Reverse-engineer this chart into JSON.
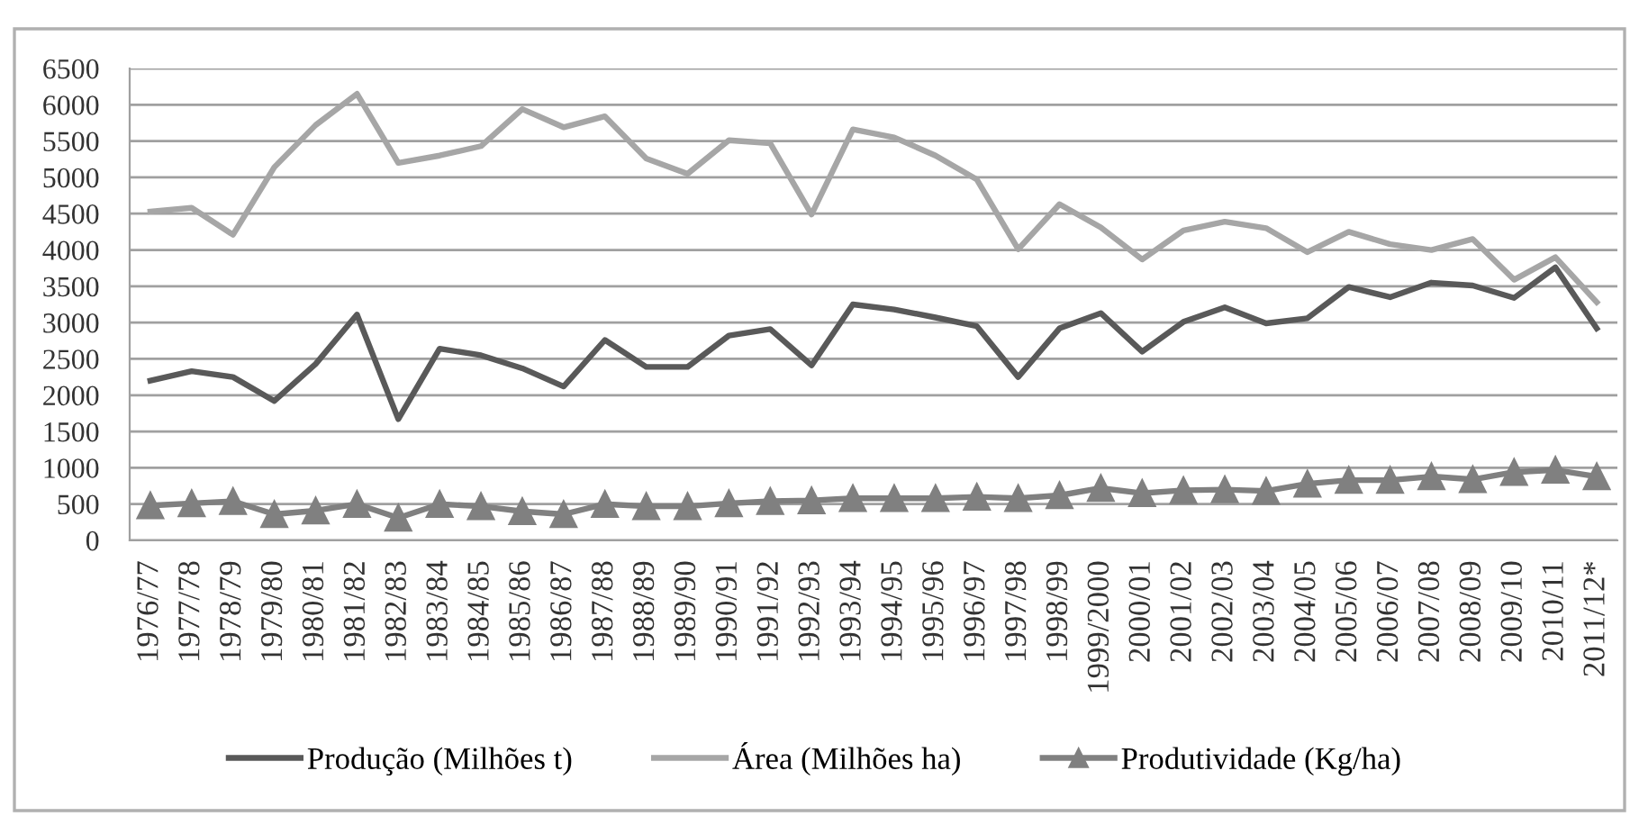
{
  "chart_data": {
    "type": "line",
    "categories": [
      "1976/77",
      "1977/78",
      "1978/79",
      "1979/80",
      "1980/81",
      "1981/82",
      "1982/83",
      "1983/84",
      "1984/85",
      "1985/86",
      "1986/87",
      "1987/88",
      "1988/89",
      "1989/90",
      "1990/91",
      "1991/92",
      "1992/93",
      "1993/94",
      "1994/95",
      "1995/96",
      "1996/97",
      "1997/98",
      "1998/99",
      "1999/2000",
      "2000/01",
      "2001/02",
      "2002/03",
      "2003/04",
      "2004/05",
      "2005/06",
      "2006/07",
      "2007/08",
      "2008/09",
      "2009/10",
      "2010/11",
      "2011/12*"
    ],
    "series": [
      {
        "name": "Produção (Milhões t)",
        "color": "#595959",
        "values": [
          2200,
          2330,
          2250,
          1920,
          2430,
          3110,
          1670,
          2640,
          2550,
          2370,
          2120,
          2760,
          2390,
          2390,
          2820,
          2910,
          2410,
          3250,
          3180,
          3070,
          2950,
          2250,
          2920,
          3130,
          2600,
          3010,
          3210,
          2990,
          3060,
          3490,
          3350,
          3550,
          3510,
          3340,
          3760,
          2920
        ]
      },
      {
        "name": "Área (Milhões ha)",
        "color": "#a6a6a6",
        "values": [
          4530,
          4580,
          4210,
          5140,
          5720,
          6150,
          5200,
          5300,
          5430,
          5940,
          5690,
          5840,
          5260,
          5050,
          5510,
          5470,
          4490,
          5660,
          5550,
          5300,
          4970,
          4010,
          4630,
          4310,
          3870,
          4270,
          4390,
          4300,
          3970,
          4250,
          4080,
          4000,
          4150,
          3590,
          3900,
          3280
        ]
      },
      {
        "name": "Produtividade (Kg/ha)",
        "color": "#808080",
        "marker": "triangle",
        "values": [
          480,
          510,
          540,
          360,
          410,
          500,
          310,
          500,
          470,
          400,
          360,
          500,
          470,
          470,
          510,
          540,
          550,
          580,
          580,
          580,
          600,
          580,
          620,
          720,
          650,
          690,
          700,
          680,
          780,
          830,
          830,
          880,
          840,
          940,
          970,
          880
        ]
      }
    ],
    "ylim": [
      0,
      6500
    ],
    "yticks": [
      0,
      500,
      1000,
      1500,
      2000,
      2500,
      3000,
      3500,
      4000,
      4500,
      5000,
      5500,
      6000,
      6500
    ],
    "grid": "y",
    "legend": "bottom"
  }
}
